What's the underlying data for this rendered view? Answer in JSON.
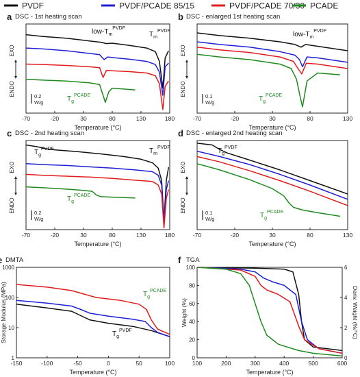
{
  "legend": [
    {
      "name": "PVDF",
      "color": "#111111"
    },
    {
      "name": "PVDF/PCADE 85/15",
      "color": "#1f1fd6"
    },
    {
      "name": "PVDF/PCADE 70/30",
      "color": "#e01b1b"
    },
    {
      "name": "PCADE",
      "color": "#1e8a1e"
    }
  ],
  "chart_data": [
    {
      "panel": "a",
      "type": "line",
      "title": "DSC - 1st heating scan",
      "xlabel": "Temperature (°C)",
      "ylabel_top": "EXO",
      "ylabel_bottom": "ENDO",
      "xlim": [
        -70,
        180
      ],
      "xticks": [
        "-70",
        "-20",
        "30",
        "80",
        "130",
        "180"
      ],
      "scale_bar": [
        "0.2",
        "W/g"
      ],
      "annotations": [
        {
          "text": "low-T",
          "sup": "PVDF",
          "sub": "m",
          "color": "#111111"
        },
        {
          "text": "T",
          "sup": "PVDF",
          "sub": "m",
          "color": "#111111"
        },
        {
          "text": "T",
          "sup": "PCADE",
          "sub": "g",
          "color": "#1e8a1e"
        }
      ],
      "series": [
        {
          "name": "PVDF",
          "x": [
            -70,
            -40,
            0,
            40,
            60,
            70,
            80,
            110,
            140,
            155,
            162,
            168,
            172,
            178
          ],
          "y": [
            0.88,
            0.86,
            0.84,
            0.81,
            0.795,
            0.78,
            0.785,
            0.76,
            0.73,
            0.69,
            0.58,
            0.28,
            0.62,
            0.7
          ]
        },
        {
          "name": "PVDF/PCADE 85/15",
          "x": [
            -70,
            -40,
            0,
            40,
            58,
            66,
            72,
            85,
            110,
            140,
            155,
            162,
            168,
            172,
            178
          ],
          "y": [
            0.73,
            0.72,
            0.7,
            0.67,
            0.655,
            0.6,
            0.63,
            0.62,
            0.605,
            0.58,
            0.545,
            0.46,
            0.2,
            0.52,
            0.56
          ]
        },
        {
          "name": "PVDF/PCADE 70/30",
          "x": [
            -70,
            -40,
            0,
            40,
            58,
            64,
            70,
            80,
            110,
            140,
            155,
            162,
            168,
            172,
            178
          ],
          "y": [
            0.55,
            0.545,
            0.535,
            0.52,
            0.51,
            0.4,
            0.48,
            0.475,
            0.465,
            0.45,
            0.42,
            0.33,
            0.04,
            0.3,
            0.36
          ]
        },
        {
          "name": "PCADE",
          "x": [
            -70,
            -40,
            0,
            40,
            58,
            64,
            68,
            74,
            80,
            100,
            120
          ],
          "y": [
            0.38,
            0.37,
            0.36,
            0.34,
            0.32,
            0.2,
            0.12,
            0.24,
            0.28,
            0.27,
            0.26
          ]
        }
      ]
    },
    {
      "panel": "b",
      "type": "line",
      "title": "DSC - enlarged 1st heating scan",
      "xlabel": "Temperature (°C)",
      "ylabel_top": "EXO",
      "ylabel_bottom": "ENDO",
      "xlim": [
        -70,
        130
      ],
      "xticks": [
        "-70",
        "-20",
        "30",
        "80",
        "130"
      ],
      "scale_bar": [
        "0.1",
        "W/g"
      ],
      "annotations": [
        {
          "text": "low-T",
          "sup": "PVDF",
          "sub": "m",
          "color": "#111111"
        },
        {
          "text": "T",
          "sup": "PCADE",
          "sub": "g",
          "color": "#1e8a1e"
        }
      ],
      "series": [
        {
          "name": "PVDF",
          "x": [
            -70,
            -40,
            0,
            40,
            60,
            68,
            74,
            90,
            130
          ],
          "y": [
            0.9,
            0.87,
            0.84,
            0.8,
            0.77,
            0.74,
            0.77,
            0.75,
            0.7
          ]
        },
        {
          "name": "PVDF/PCADE 85/15",
          "x": [
            -70,
            -40,
            0,
            40,
            60,
            66,
            70,
            76,
            90,
            130
          ],
          "y": [
            0.8,
            0.77,
            0.74,
            0.69,
            0.65,
            0.6,
            0.52,
            0.63,
            0.62,
            0.57
          ]
        },
        {
          "name": "PVDF/PCADE 70/30",
          "x": [
            -70,
            -40,
            0,
            40,
            58,
            64,
            69,
            75,
            90,
            130
          ],
          "y": [
            0.74,
            0.71,
            0.68,
            0.63,
            0.58,
            0.5,
            0.44,
            0.56,
            0.55,
            0.5
          ]
        },
        {
          "name": "PCADE",
          "x": [
            -70,
            -40,
            0,
            40,
            55,
            62,
            67,
            70,
            76,
            90,
            120
          ],
          "y": [
            0.66,
            0.63,
            0.6,
            0.55,
            0.5,
            0.38,
            0.18,
            0.07,
            0.36,
            0.45,
            0.43
          ]
        }
      ]
    },
    {
      "panel": "c",
      "type": "line",
      "title": "DSC - 2nd heating scan",
      "xlabel": "Temperature (°C)",
      "ylabel_top": "EXO",
      "ylabel_bottom": "ENDO",
      "xlim": [
        -70,
        180
      ],
      "xticks": [
        "-70",
        "-20",
        "30",
        "80",
        "130",
        "180"
      ],
      "scale_bar": [
        "0.2",
        "W/g"
      ],
      "annotations": [
        {
          "text": "T",
          "sup": "PVDF",
          "sub": "g",
          "color": "#111111"
        },
        {
          "text": "T",
          "sup": "PVDF",
          "sub": "m",
          "color": "#111111"
        },
        {
          "text": "T",
          "sup": "PCADE",
          "sub": "g",
          "color": "#1e8a1e"
        }
      ],
      "series": [
        {
          "name": "PVDF",
          "x": [
            -70,
            -50,
            -38,
            -20,
            20,
            60,
            100,
            130,
            150,
            160,
            166,
            170,
            174,
            178
          ],
          "y": [
            0.95,
            0.93,
            0.91,
            0.895,
            0.875,
            0.85,
            0.82,
            0.79,
            0.75,
            0.69,
            0.55,
            0.1,
            0.55,
            0.7
          ]
        },
        {
          "name": "PVDF/PCADE 85/15",
          "x": [
            -70,
            -40,
            0,
            40,
            80,
            120,
            150,
            160,
            166,
            170,
            174,
            178
          ],
          "y": [
            0.74,
            0.73,
            0.72,
            0.705,
            0.69,
            0.67,
            0.65,
            0.61,
            0.5,
            0.1,
            0.45,
            0.55
          ]
        },
        {
          "name": "PVDF/PCADE 70/30",
          "x": [
            -70,
            -40,
            0,
            40,
            80,
            120,
            150,
            160,
            166,
            170,
            174,
            178
          ],
          "y": [
            0.62,
            0.61,
            0.6,
            0.59,
            0.575,
            0.555,
            0.54,
            0.5,
            0.4,
            0.02,
            0.35,
            0.45
          ]
        },
        {
          "name": "PCADE",
          "x": [
            -70,
            -40,
            0,
            30,
            45,
            52,
            60,
            80,
            100,
            120
          ],
          "y": [
            0.48,
            0.47,
            0.455,
            0.44,
            0.43,
            0.39,
            0.37,
            0.365,
            0.36,
            0.355
          ]
        }
      ]
    },
    {
      "panel": "d",
      "type": "line",
      "title": "DSC - enlarged 2nd heating scan",
      "xlabel": "Temperature (°C)",
      "ylabel_top": "EXO",
      "ylabel_bottom": "ENDO",
      "xlim": [
        -70,
        130
      ],
      "xticks": [
        "-70",
        "-20",
        "30",
        "80",
        "130"
      ],
      "scale_bar": [
        "0.1",
        "W/g"
      ],
      "annotations": [
        {
          "text": "T",
          "sup": "PVDF",
          "sub": "g",
          "color": "#111111"
        },
        {
          "text": "T",
          "sup": "PCADE",
          "sub": "g",
          "color": "#1e8a1e"
        }
      ],
      "series": [
        {
          "name": "PVDF",
          "x": [
            -70,
            -50,
            -40,
            -30,
            0,
            40,
            80,
            130
          ],
          "y": [
            0.97,
            0.95,
            0.9,
            0.86,
            0.78,
            0.67,
            0.55,
            0.4
          ]
        },
        {
          "name": "PVDF/PCADE 85/15",
          "x": [
            -70,
            -40,
            0,
            40,
            80,
            130
          ],
          "y": [
            0.88,
            0.82,
            0.73,
            0.62,
            0.5,
            0.34
          ]
        },
        {
          "name": "PVDF/PCADE 70/30",
          "x": [
            -70,
            -40,
            0,
            40,
            80,
            130
          ],
          "y": [
            0.82,
            0.76,
            0.66,
            0.55,
            0.43,
            0.27
          ]
        },
        {
          "name": "PCADE",
          "x": [
            -70,
            -40,
            0,
            30,
            45,
            52,
            58,
            70,
            90,
            120
          ],
          "y": [
            0.74,
            0.67,
            0.56,
            0.46,
            0.38,
            0.3,
            0.25,
            0.22,
            0.19,
            0.15
          ]
        }
      ]
    },
    {
      "panel": "e",
      "type": "line",
      "title": "DMTA",
      "xlabel": "Temperature (°C)",
      "ylabel": "Storage Modulus (MPa)",
      "xlim": [
        -150,
        100
      ],
      "xticks": [
        "-150",
        "-100",
        "-50",
        "0",
        "50",
        "100"
      ],
      "ylim": [
        1,
        1000
      ],
      "yscale": "log",
      "yticks": [
        "1",
        "10",
        "100",
        "1000"
      ],
      "annotations": [
        {
          "text": "T",
          "sup": "PVDF",
          "sub": "g",
          "color": "#111111"
        },
        {
          "text": "T",
          "sup": "PCADE",
          "sub": "g",
          "color": "#1e8a1e"
        }
      ],
      "series": [
        {
          "name": "PVDF",
          "x": [
            -150,
            -100,
            -60,
            -45,
            -30,
            0,
            40,
            70,
            100
          ],
          "y": [
            60,
            45,
            35,
            25,
            18,
            14,
            11,
            8,
            5
          ]
        },
        {
          "name": "PVDF/PCADE 85/15",
          "x": [
            -150,
            -100,
            -60,
            -45,
            -30,
            0,
            40,
            60,
            70,
            80,
            100
          ],
          "y": [
            80,
            65,
            52,
            40,
            30,
            24,
            19,
            16,
            10,
            7,
            5
          ]
        },
        {
          "name": "PVDF/PCADE 70/30",
          "x": [
            -150,
            -100,
            -60,
            -40,
            -20,
            20,
            50,
            62,
            70,
            80,
            100
          ],
          "y": [
            270,
            220,
            170,
            130,
            100,
            80,
            60,
            40,
            18,
            9,
            6
          ]
        }
      ]
    },
    {
      "panel": "f",
      "type": "line",
      "title": "TGA",
      "xlabel": "Temperature (°C)",
      "ylabel": "Weight (%)",
      "ylabel_right": "Deriv. Weight (%/°C)",
      "xlim": [
        100,
        600
      ],
      "xticks": [
        "100",
        "200",
        "300",
        "400",
        "500",
        "600"
      ],
      "ylim": [
        0,
        100
      ],
      "yticks": [
        "0",
        "20",
        "40",
        "60",
        "80",
        "100"
      ],
      "ylim_right": [
        0,
        6
      ],
      "yticks_right": [
        "0",
        "2",
        "4",
        "6"
      ],
      "series": [
        {
          "name": "PVDF",
          "x": [
            100,
            300,
            400,
            430,
            450,
            460,
            470,
            500,
            600
          ],
          "y": [
            100,
            99,
            98,
            95,
            70,
            40,
            20,
            12,
            8
          ]
        },
        {
          "name": "PVDF/PCADE 85/15",
          "x": [
            100,
            250,
            300,
            330,
            360,
            400,
            440,
            460,
            480,
            520,
            600
          ],
          "y": [
            100,
            98,
            95,
            88,
            84,
            80,
            70,
            40,
            20,
            10,
            5
          ]
        },
        {
          "name": "PVDF/PCADE 70/30",
          "x": [
            100,
            250,
            300,
            320,
            340,
            380,
            420,
            450,
            470,
            520,
            600
          ],
          "y": [
            100,
            97,
            90,
            80,
            75,
            70,
            62,
            35,
            20,
            10,
            5
          ]
        },
        {
          "name": "PCADE",
          "x": [
            100,
            200,
            250,
            280,
            300,
            320,
            340,
            380,
            450,
            500,
            600
          ],
          "y": [
            100,
            98,
            93,
            80,
            60,
            40,
            25,
            15,
            8,
            5,
            2
          ]
        }
      ]
    }
  ]
}
